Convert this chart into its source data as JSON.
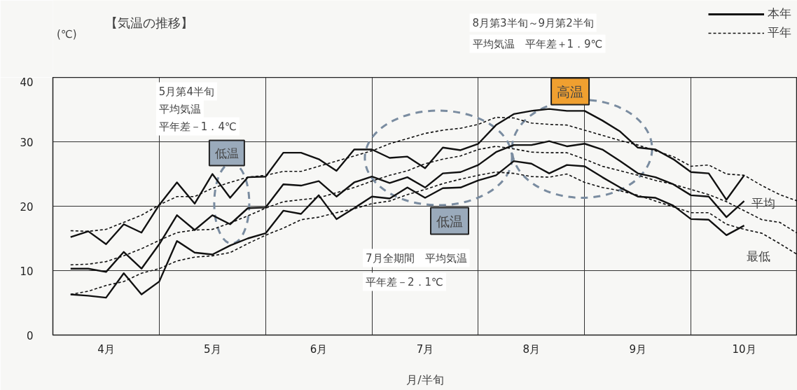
{
  "chart_data": {
    "type": "line",
    "title": "【気温の推移】",
    "ylabel": "(℃)",
    "xlabel": "月/半旬",
    "categories": [
      null,
      null,
      "4月",
      null,
      null,
      null,
      null,
      null,
      "5月",
      null,
      null,
      null,
      null,
      null,
      "6月",
      null,
      null,
      null,
      null,
      null,
      "7月",
      null,
      null,
      null,
      null,
      null,
      "8月",
      null,
      null,
      null,
      null,
      null,
      "9月",
      null,
      null,
      null,
      null,
      null,
      "10月",
      null,
      null,
      null
    ],
    "ylim": [
      0,
      40
    ],
    "yticks": [
      0,
      10,
      20,
      30,
      40
    ],
    "grid": true,
    "legend": "top right",
    "series": [
      {
        "name": "本年",
        "color": "#111111",
        "line_style": "solid",
        "values": [
          15.2,
          16.1,
          14.1,
          17.2,
          15.9,
          20.2,
          23.7,
          20.4,
          25.0,
          21.3,
          24.5,
          24.6,
          28.3,
          28.3,
          27.3,
          25.5,
          28.8,
          28.8,
          27.5,
          27.7,
          25.9,
          29.1,
          28.7,
          29.7,
          32.6,
          34.3,
          34.8,
          35.1,
          34.8,
          34.8,
          33.3,
          31.6,
          29.1,
          28.8,
          27.3,
          25.3,
          25.1,
          21.0,
          24.8,
          null,
          null,
          null
        ]
      },
      {
        "color": "#111111",
        "line_style": "solid",
        "values": [
          10.3,
          10.3,
          9.8,
          12.9,
          10.3,
          14.1,
          18.6,
          16.3,
          18.6,
          17.2,
          19.7,
          19.8,
          23.4,
          23.2,
          23.9,
          21.5,
          23.7,
          24.6,
          23.6,
          24.5,
          22.9,
          25.1,
          25.3,
          26.4,
          28.4,
          29.5,
          29.5,
          30.1,
          29.3,
          29.7,
          28.8,
          27.0,
          25.1,
          24.5,
          23.4,
          21.7,
          21.5,
          18.3,
          20.8,
          null,
          null,
          null
        ]
      },
      {
        "color": "#111111",
        "line_style": "solid",
        "values": [
          6.3,
          6.1,
          5.8,
          9.6,
          6.3,
          8.3,
          14.6,
          12.8,
          12.5,
          13.9,
          15.0,
          15.8,
          19.3,
          18.8,
          21.7,
          18.0,
          19.7,
          21.5,
          21.2,
          22.9,
          21.3,
          22.8,
          22.9,
          24.0,
          24.8,
          27.0,
          26.6,
          25.1,
          26.4,
          26.2,
          24.5,
          22.9,
          21.5,
          21.3,
          20.1,
          18.0,
          17.9,
          15.5,
          17.0,
          null,
          null,
          null
        ]
      },
      {
        "name": "平年",
        "color": "#111111",
        "line_style": "dashed",
        "values": [
          16.2,
          16.1,
          16.4,
          17.5,
          18.6,
          20.2,
          21.5,
          21.5,
          22.8,
          23.7,
          24.5,
          24.8,
          25.4,
          25.4,
          26.2,
          27.0,
          27.8,
          28.6,
          29.7,
          30.5,
          31.3,
          31.8,
          32.1,
          32.7,
          33.8,
          33.7,
          32.9,
          32.7,
          32.6,
          31.8,
          31.0,
          30.2,
          29.5,
          28.6,
          27.7,
          26.2,
          26.4,
          25.0,
          24.8,
          23.2,
          21.8,
          20.8
        ]
      },
      {
        "color": "#111111",
        "line_style": "dashed",
        "values": [
          10.9,
          11.0,
          11.4,
          12.3,
          13.4,
          14.7,
          15.9,
          16.3,
          16.4,
          17.4,
          18.5,
          19.7,
          20.7,
          21.0,
          21.3,
          22.1,
          22.9,
          23.9,
          24.8,
          25.5,
          26.6,
          27.3,
          27.8,
          28.8,
          29.3,
          28.9,
          28.4,
          28.3,
          28.3,
          27.3,
          26.2,
          25.5,
          24.8,
          24.0,
          23.4,
          22.6,
          21.8,
          20.7,
          19.3,
          17.9,
          17.5,
          15.8
        ]
      },
      {
        "color": "#111111",
        "line_style": "dashed",
        "values": [
          6.3,
          6.8,
          7.7,
          8.3,
          9.6,
          10.3,
          11.5,
          12.1,
          12.3,
          12.8,
          14.2,
          15.5,
          16.6,
          17.9,
          18.3,
          19.0,
          19.6,
          20.4,
          20.8,
          21.8,
          22.6,
          23.5,
          24.2,
          24.8,
          25.3,
          25.1,
          24.6,
          24.5,
          25.0,
          23.7,
          22.9,
          22.4,
          21.7,
          20.8,
          19.9,
          19.0,
          19.0,
          17.2,
          16.4,
          15.8,
          14.2,
          12.5
        ]
      }
    ],
    "annotations": [
      "5月第4半旬",
      "平均気温",
      "平年差－1．4℃",
      "低温",
      "8月第3半旬～9月第2半旬",
      "平均気温　平年差＋1．9℃",
      "高温",
      "低温",
      "7月全期間　平均気温",
      "平年差－2．1℃",
      "平均",
      "最低"
    ]
  }
}
